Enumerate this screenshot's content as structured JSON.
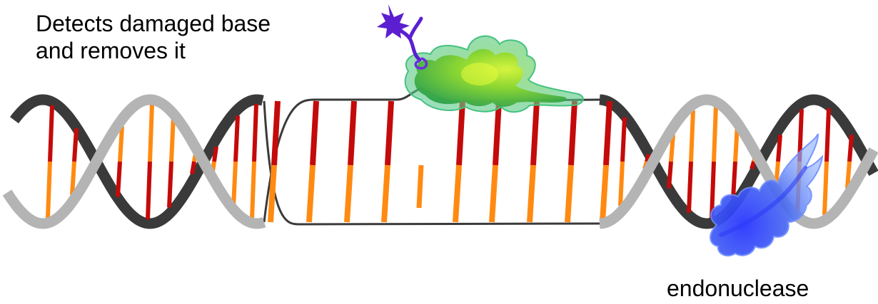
{
  "labels": {
    "detects_line1": "Detects damaged base",
    "detects_line2": "and removes it",
    "endonuclease": "endonuclease"
  },
  "colors": {
    "strand_dark": "#3a3a3a",
    "strand_light": "#b4b4b4",
    "base_red": "#c40a0a",
    "base_orange": "#ff8a12",
    "glycosylase_green": "#7ed321",
    "glycosylase_outline": "#3cb371",
    "lesion_purple": "#5b1fd1",
    "endonuclease_blue": "#3d52f0"
  },
  "icons": {
    "glycosylase": "dna-glycosylase-enzyme",
    "damaged_base": "damaged-base-fragment",
    "endonuclease": "endonuclease-enzyme"
  }
}
